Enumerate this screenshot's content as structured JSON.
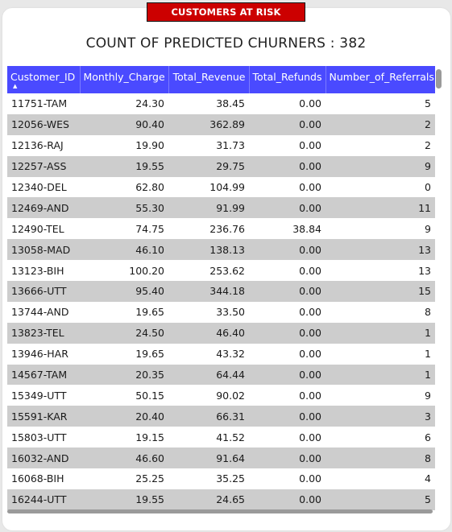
{
  "header": {
    "button_label": "CUSTOMERS AT RISK",
    "count_title": "COUNT OF PREDICTED CHURNERS : 382"
  },
  "table": {
    "columns": [
      "Customer_ID",
      "Monthly_Charge",
      "Total_Revenue",
      "Total_Refunds",
      "Number_of_Referrals"
    ],
    "sorted_column": "Customer_ID",
    "sort_direction": "ascending",
    "rows": [
      [
        "11751-TAM",
        "24.30",
        "38.45",
        "0.00",
        "5"
      ],
      [
        "12056-WES",
        "90.40",
        "362.89",
        "0.00",
        "2"
      ],
      [
        "12136-RAJ",
        "19.90",
        "31.73",
        "0.00",
        "2"
      ],
      [
        "12257-ASS",
        "19.55",
        "29.75",
        "0.00",
        "9"
      ],
      [
        "12340-DEL",
        "62.80",
        "104.99",
        "0.00",
        "0"
      ],
      [
        "12469-AND",
        "55.30",
        "91.99",
        "0.00",
        "11"
      ],
      [
        "12490-TEL",
        "74.75",
        "236.76",
        "38.84",
        "9"
      ],
      [
        "13058-MAD",
        "46.10",
        "138.13",
        "0.00",
        "13"
      ],
      [
        "13123-BIH",
        "100.20",
        "253.62",
        "0.00",
        "13"
      ],
      [
        "13666-UTT",
        "95.40",
        "344.18",
        "0.00",
        "15"
      ],
      [
        "13744-AND",
        "19.65",
        "33.50",
        "0.00",
        "8"
      ],
      [
        "13823-TEL",
        "24.50",
        "46.40",
        "0.00",
        "1"
      ],
      [
        "13946-HAR",
        "19.65",
        "43.32",
        "0.00",
        "1"
      ],
      [
        "14567-TAM",
        "20.35",
        "64.44",
        "0.00",
        "1"
      ],
      [
        "15349-UTT",
        "50.15",
        "90.02",
        "0.00",
        "9"
      ],
      [
        "15591-KAR",
        "20.40",
        "66.31",
        "0.00",
        "3"
      ],
      [
        "15803-UTT",
        "19.15",
        "41.52",
        "0.00",
        "6"
      ],
      [
        "16032-AND",
        "46.60",
        "91.64",
        "0.00",
        "8"
      ],
      [
        "16068-BIH",
        "25.25",
        "35.25",
        "0.00",
        "4"
      ],
      [
        "16244-UTT",
        "19.55",
        "24.65",
        "0.00",
        "5"
      ]
    ]
  },
  "colors": {
    "header_button_bg": "#cc0000",
    "table_header_bg": "#4a4aff",
    "row_alt_bg": "#cdcdcd",
    "scrollbar": "#9a9a9a"
  }
}
